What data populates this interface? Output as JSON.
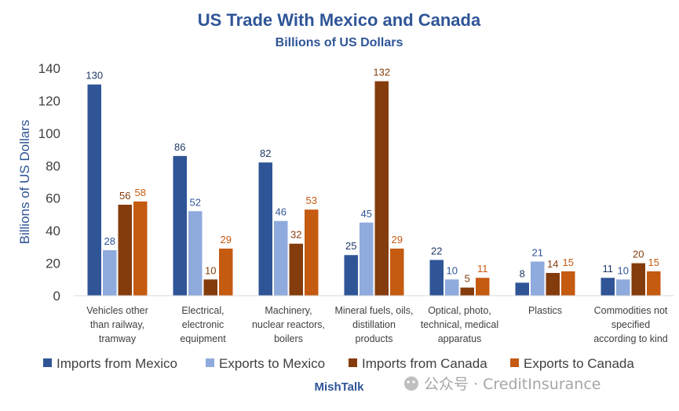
{
  "chart_data": {
    "type": "bar",
    "title": "US Trade With Mexico and Canada",
    "subtitle": "Billions of US Dollars",
    "ylabel": "Billions of US Dollars",
    "xlabel": "",
    "ylim": [
      0,
      140
    ],
    "yticks": [
      0,
      20,
      40,
      60,
      80,
      100,
      120,
      140
    ],
    "grid": false,
    "legend_position": "bottom",
    "categories": [
      [
        "Vehicles other",
        "than railway,",
        "tramway"
      ],
      [
        "Electrical,",
        "electronic",
        "equipment"
      ],
      [
        "Machinery,",
        "nuclear reactors,",
        "boilers"
      ],
      [
        "Mineral fuels, oils,",
        "distillation",
        "products"
      ],
      [
        "Optical, photo,",
        "technical, medical",
        "apparatus"
      ],
      [
        "Plastics"
      ],
      [
        "Commodities not",
        "specified",
        "according to kind"
      ]
    ],
    "series": [
      {
        "name": "Imports from Mexico",
        "color": "#2F5597",
        "label_color": "#1F3864",
        "values": [
          130,
          86,
          82,
          25,
          22,
          8,
          11
        ]
      },
      {
        "name": "Exports to Mexico",
        "color": "#8FAADC",
        "label_color": "#2F5597",
        "values": [
          28,
          52,
          46,
          45,
          10,
          21,
          10
        ]
      },
      {
        "name": "Imports from Canada",
        "color": "#843C0C",
        "label_color": "#843C0C",
        "values": [
          56,
          10,
          32,
          132,
          5,
          14,
          20
        ]
      },
      {
        "name": "Exports to Canada",
        "color": "#C55A11",
        "label_color": "#C55A11",
        "values": [
          58,
          29,
          53,
          29,
          11,
          15,
          15
        ]
      }
    ]
  },
  "colors": {
    "title": "#2F5597",
    "axis_text": "#404040",
    "axis_line": "#D9D9D9",
    "footer_brand": "#2F5597",
    "watermark": "#A6A6A6"
  },
  "footer": {
    "brand": "MishTalk",
    "watermark": "公众号 · CreditInsurance"
  }
}
